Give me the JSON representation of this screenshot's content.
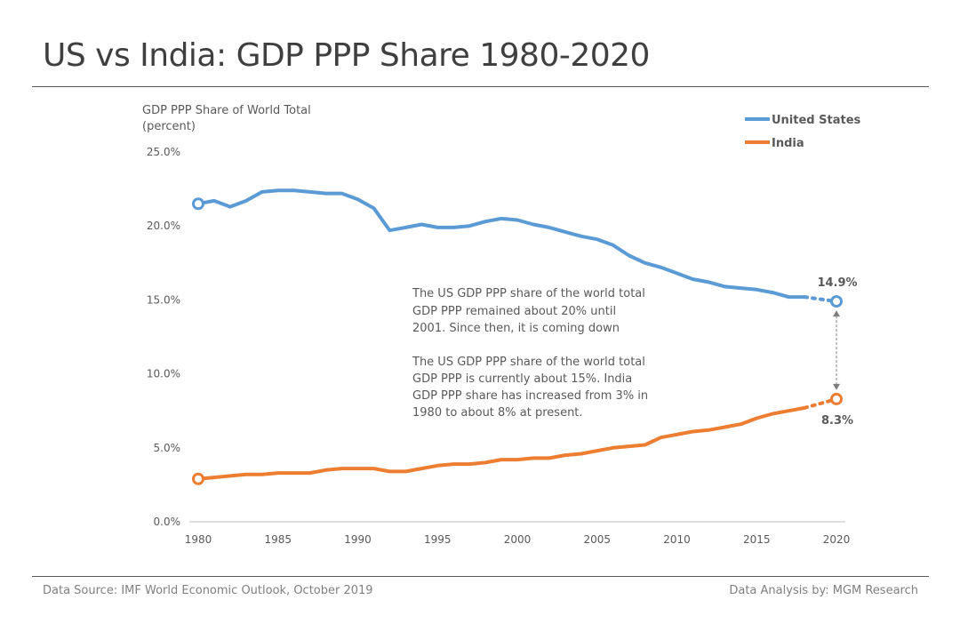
{
  "title": "US vs India: GDP PPP Share 1980-2020",
  "footer": {
    "source": "Data Source: IMF World Economic Outlook, October 2019",
    "analysis": "Data Analysis by: MGM Research"
  },
  "colors": {
    "us": "#5b9bd5",
    "india": "#ed7d31",
    "text": "#595959",
    "axis": "#bfbfbf",
    "arrow": "#7f7f7f"
  },
  "chart_data": {
    "type": "line",
    "ylabel_line1": "GDP PPP Share of World Total",
    "ylabel_line2": "(percent)",
    "ylim": [
      0,
      25
    ],
    "xlim": [
      1980,
      2020
    ],
    "y_ticks": [
      0,
      5,
      10,
      15,
      20,
      25
    ],
    "y_tick_labels": [
      "0.0%",
      "5.0%",
      "10.0%",
      "15.0%",
      "20.0%",
      "25.0%"
    ],
    "x_ticks": [
      1980,
      1985,
      1990,
      1995,
      2000,
      2005,
      2010,
      2015,
      2020
    ],
    "x_tick_labels": [
      "1980",
      "1985",
      "1990",
      "1995",
      "2000",
      "2005",
      "2010",
      "2015",
      "2020"
    ],
    "legend_position": "top-right",
    "series": [
      {
        "name": "United States",
        "key": "us",
        "x": [
          1980,
          1981,
          1982,
          1983,
          1984,
          1985,
          1986,
          1987,
          1988,
          1989,
          1990,
          1991,
          1992,
          1993,
          1994,
          1995,
          1996,
          1997,
          1998,
          1999,
          2000,
          2001,
          2002,
          2003,
          2004,
          2005,
          2006,
          2007,
          2008,
          2009,
          2010,
          2011,
          2012,
          2013,
          2014,
          2015,
          2016,
          2017,
          2018
        ],
        "values": [
          21.5,
          21.7,
          21.3,
          21.7,
          22.3,
          22.4,
          22.4,
          22.3,
          22.2,
          22.2,
          21.8,
          21.2,
          19.7,
          19.9,
          20.1,
          19.9,
          19.9,
          20.0,
          20.3,
          20.5,
          20.4,
          20.1,
          19.9,
          19.6,
          19.3,
          19.1,
          18.7,
          18.0,
          17.5,
          17.2,
          16.8,
          16.4,
          16.2,
          15.9,
          15.8,
          15.7,
          15.5,
          15.2,
          15.2
        ],
        "projection": {
          "x": [
            2018,
            2020
          ],
          "values": [
            15.2,
            14.9
          ]
        },
        "start_value": 21.5,
        "end_label": "14.9%",
        "end_value": 14.9
      },
      {
        "name": "India",
        "key": "india",
        "x": [
          1980,
          1981,
          1982,
          1983,
          1984,
          1985,
          1986,
          1987,
          1988,
          1989,
          1990,
          1991,
          1992,
          1993,
          1994,
          1995,
          1996,
          1997,
          1998,
          1999,
          2000,
          2001,
          2002,
          2003,
          2004,
          2005,
          2006,
          2007,
          2008,
          2009,
          2010,
          2011,
          2012,
          2013,
          2014,
          2015,
          2016,
          2017,
          2018
        ],
        "values": [
          2.9,
          3.0,
          3.1,
          3.2,
          3.2,
          3.3,
          3.3,
          3.3,
          3.5,
          3.6,
          3.6,
          3.6,
          3.4,
          3.4,
          3.6,
          3.8,
          3.9,
          3.9,
          4.0,
          4.2,
          4.2,
          4.3,
          4.3,
          4.5,
          4.6,
          4.8,
          5.0,
          5.1,
          5.2,
          5.7,
          5.9,
          6.1,
          6.2,
          6.4,
          6.6,
          7.0,
          7.3,
          7.5,
          7.7
        ],
        "projection": {
          "x": [
            2018,
            2020
          ],
          "values": [
            7.7,
            8.3
          ]
        },
        "start_value": 2.9,
        "end_label": "8.3%",
        "end_value": 8.3
      }
    ],
    "annotations": [
      "The US GDP PPP share of the world total",
      "GDP PPP remained about 20% until",
      "2001. Since then, it is coming down",
      "The US GDP PPP share of the world total",
      "GDP PPP is currently about 15%. India",
      "GDP PPP share has increased from 3% in",
      "1980 to about 8% at present."
    ]
  }
}
